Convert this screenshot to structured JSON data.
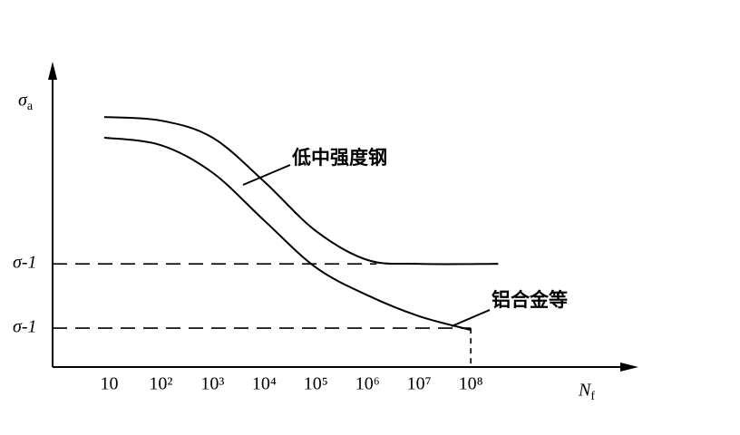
{
  "chart_data": {
    "type": "line",
    "y_label": "σa",
    "x_label": "Nf",
    "annotations": [
      "低中强度钢",
      "铝合金等"
    ],
    "x_log": true,
    "xlim": [
      0.8,
      150000000000.0
    ],
    "xticks": [
      10,
      {
        "value": 100,
        "label": "10²"
      },
      {
        "value": 1000,
        "label": "10³"
      },
      {
        "value": 10000,
        "label": "10⁴"
      },
      {
        "value": 100000,
        "label": "10⁵"
      },
      {
        "value": 1000000,
        "label": "10⁶"
      },
      {
        "value": 10000000,
        "label": "10⁷"
      },
      {
        "value": 100000000,
        "label": "10⁸"
      }
    ],
    "ylim": [
      0,
      100
    ],
    "yticks": [
      {
        "value": 34.5,
        "label": "σ-1"
      },
      {
        "value": 13,
        "label": "σ-1"
      }
    ],
    "series": [
      {
        "name": "低中强度钢",
        "color": "#000000",
        "x": [
          8,
          100,
          1000,
          10000,
          100000,
          1000000,
          10000000,
          340000000
        ],
        "values": [
          83.6,
          82.4,
          76.7,
          62,
          45.5,
          35.8,
          34.5,
          34.5
        ]
      },
      {
        "name": "铝合金等",
        "color": "#000000",
        "x": [
          8,
          100,
          1000,
          10000,
          100000,
          1000000,
          10000000,
          100000000
        ],
        "values": [
          76.7,
          74.2,
          65,
          49,
          33.3,
          24,
          17,
          12.4
        ]
      }
    ]
  }
}
